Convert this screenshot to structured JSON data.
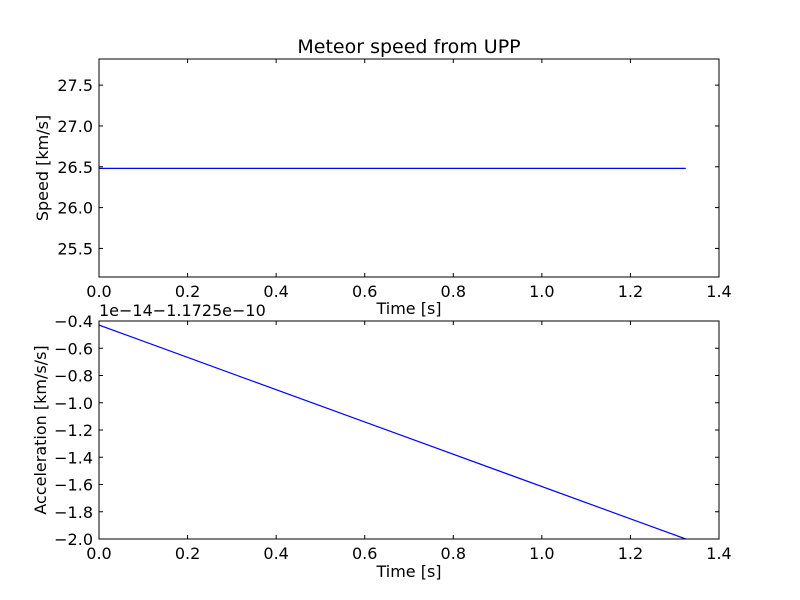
{
  "chart_data": [
    {
      "type": "line",
      "title": "Meteor speed from  UPP",
      "xlabel": "Time [s]",
      "ylabel": "Speed [km/s]",
      "xlim": [
        0.0,
        1.4
      ],
      "ylim": [
        25.15,
        27.82
      ],
      "xticks": [
        "0.0",
        "0.2",
        "0.4",
        "0.6",
        "0.8",
        "1.0",
        "1.2",
        "1.4"
      ],
      "xtick_values": [
        0.0,
        0.2,
        0.4,
        0.6,
        0.8,
        1.0,
        1.2,
        1.4
      ],
      "yticks": [
        "25.5",
        "26.0",
        "26.5",
        "27.0",
        "27.5"
      ],
      "ytick_values": [
        25.5,
        26.0,
        26.5,
        27.0,
        27.5
      ],
      "grid": false,
      "line_color": "#0000ff",
      "series": [
        {
          "x": [
            0.0,
            1.325
          ],
          "y": [
            26.48,
            26.48
          ]
        }
      ]
    },
    {
      "type": "line",
      "xlabel": "Time [s]",
      "ylabel": "Acceleration [km/s/s]",
      "offset_text": "1e−14−1.1725e−10",
      "xlim": [
        0.0,
        1.4
      ],
      "ylim": [
        -2.0,
        -0.4
      ],
      "xticks": [
        "0.0",
        "0.2",
        "0.4",
        "0.6",
        "0.8",
        "1.0",
        "1.2",
        "1.4"
      ],
      "xtick_values": [
        0.0,
        0.2,
        0.4,
        0.6,
        0.8,
        1.0,
        1.2,
        1.4
      ],
      "yticks": [
        "−2.0",
        "−1.8",
        "−1.6",
        "−1.4",
        "−1.2",
        "−1.0",
        "−0.8",
        "−0.6",
        "−0.4"
      ],
      "ytick_values": [
        -2.0,
        -1.8,
        -1.6,
        -1.4,
        -1.2,
        -1.0,
        -0.8,
        -0.6,
        -0.4
      ],
      "grid": false,
      "line_color": "#0000ff",
      "series": [
        {
          "x": [
            0.0,
            1.325
          ],
          "y": [
            -0.43,
            -2.0
          ]
        }
      ]
    }
  ]
}
